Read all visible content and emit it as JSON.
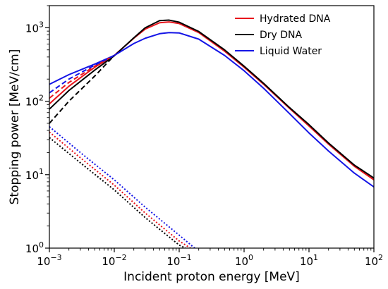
{
  "chart_data": {
    "type": "line",
    "xlabel": "Incident proton energy [MeV]",
    "ylabel": "Stopping power [MeV/cm]",
    "xscale": "log",
    "yscale": "log",
    "xlim": [
      0.001,
      100
    ],
    "ylim": [
      1,
      2000
    ],
    "grid": false,
    "legend_position": "top-right",
    "x_ticks": [
      {
        "value": 0.001,
        "mantissa": "10",
        "exp": "−3"
      },
      {
        "value": 0.01,
        "mantissa": "10",
        "exp": "−2"
      },
      {
        "value": 0.1,
        "mantissa": "10",
        "exp": "−1"
      },
      {
        "value": 1,
        "mantissa": "10",
        "exp": "0"
      },
      {
        "value": 10,
        "mantissa": "10",
        "exp": "1"
      },
      {
        "value": 100,
        "mantissa": "10",
        "exp": "2"
      }
    ],
    "y_ticks": [
      {
        "value": 1,
        "mantissa": "10",
        "exp": "0"
      },
      {
        "value": 10,
        "mantissa": "10",
        "exp": "1"
      },
      {
        "value": 100,
        "mantissa": "10",
        "exp": "2"
      },
      {
        "value": 1000,
        "mantissa": "10",
        "exp": "3"
      }
    ],
    "series": [
      {
        "name": "Hydrated DNA",
        "color": "#e8141c",
        "dash": "solid",
        "x": [
          0.001,
          0.002,
          0.005,
          0.01,
          0.02,
          0.03,
          0.05,
          0.07,
          0.1,
          0.2,
          0.5,
          1,
          2,
          5,
          10,
          20,
          50,
          100
        ],
        "y": [
          92,
          160,
          290,
          420,
          720,
          960,
          1170,
          1200,
          1140,
          860,
          480,
          290,
          170,
          80,
          46,
          26,
          13,
          8.5
        ]
      },
      {
        "name": "Dry DNA",
        "color": "#000000",
        "dash": "solid",
        "x": [
          0.001,
          0.002,
          0.005,
          0.01,
          0.02,
          0.03,
          0.05,
          0.07,
          0.1,
          0.2,
          0.5,
          1,
          2,
          5,
          10,
          20,
          50,
          100
        ],
        "y": [
          78,
          140,
          265,
          415,
          730,
          1000,
          1250,
          1270,
          1190,
          890,
          500,
          300,
          175,
          82,
          48,
          27,
          13.5,
          9
        ]
      },
      {
        "name": "Liquid Water",
        "color": "#1414e6",
        "dash": "solid",
        "x": [
          0.001,
          0.002,
          0.005,
          0.01,
          0.02,
          0.03,
          0.05,
          0.07,
          0.1,
          0.2,
          0.5,
          1,
          2,
          5,
          10,
          20,
          50,
          100
        ],
        "y": [
          170,
          230,
          320,
          420,
          610,
          720,
          830,
          860,
          850,
          700,
          420,
          260,
          150,
          68,
          37,
          21,
          10.5,
          6.8
        ]
      },
      {
        "color": "#e8141c",
        "dash": "dashed",
        "x": [
          0.001,
          0.002,
          0.005,
          0.01
        ],
        "y": [
          110,
          180,
          300,
          420
        ]
      },
      {
        "color": "#000000",
        "dash": "dashed",
        "x": [
          0.001,
          0.002,
          0.005,
          0.01
        ],
        "y": [
          50,
          100,
          220,
          420
        ]
      },
      {
        "color": "#1414e6",
        "dash": "dashed",
        "x": [
          0.001,
          0.002,
          0.005,
          0.01
        ],
        "y": [
          130,
          200,
          310,
          420
        ]
      },
      {
        "color": "#1414e6",
        "dash": "dotted",
        "x": [
          0.001,
          0.003,
          0.01,
          0.03,
          0.1,
          0.2
        ],
        "y": [
          45,
          20,
          8.5,
          3.6,
          1.5,
          0.9
        ]
      },
      {
        "color": "#e8141c",
        "dash": "dotted",
        "x": [
          0.001,
          0.003,
          0.01,
          0.03,
          0.1,
          0.18
        ],
        "y": [
          38,
          17,
          7.2,
          3.0,
          1.25,
          0.9
        ]
      },
      {
        "color": "#000000",
        "dash": "dotted",
        "x": [
          0.001,
          0.003,
          0.01,
          0.03,
          0.1,
          0.16
        ],
        "y": [
          32,
          14.5,
          6.2,
          2.6,
          1.1,
          0.9
        ]
      }
    ]
  }
}
